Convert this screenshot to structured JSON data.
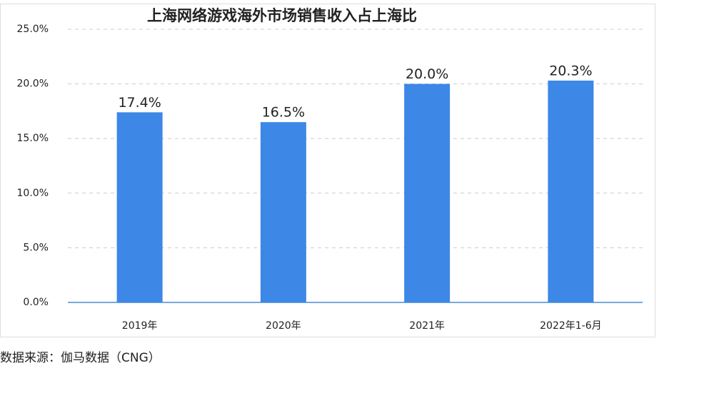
{
  "chart_data": {
    "type": "bar",
    "title": "上海网络游戏海外市场销售收入占上海比",
    "categories": [
      "2019年",
      "2020年",
      "2021年",
      "2022年1-6月"
    ],
    "values": [
      17.4,
      16.5,
      20.0,
      20.3
    ],
    "value_labels": [
      "17.4%",
      "16.5%",
      "20.0%",
      "20.3%"
    ],
    "color": "#3d87e6",
    "ylim": [
      0,
      25
    ],
    "yticks": [
      {
        "value": 0,
        "label": "0.0%"
      },
      {
        "value": 5,
        "label": "5.0%"
      },
      {
        "value": 10,
        "label": "10.0%"
      },
      {
        "value": 15,
        "label": "15.0%"
      },
      {
        "value": 20,
        "label": "20.0%"
      },
      {
        "value": 25,
        "label": "25.0%"
      }
    ],
    "grid": true
  },
  "source": "数据来源：伽马数据（CNG）"
}
